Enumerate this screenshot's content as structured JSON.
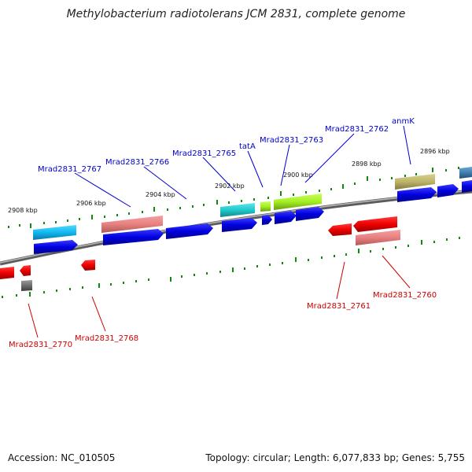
{
  "title": "Methylobacterium radiotolerans JCM 2831, complete genome",
  "footer": {
    "accession": "Accession: NC_010505",
    "summary": "Topology: circular; Length: 6,077,833 bp; Genes: 5,755"
  },
  "colors": {
    "top_label": "#0000cc",
    "bottom_label": "#cc0000",
    "tick": "#118811",
    "backbone": "#888888"
  },
  "ticks": [
    {
      "label": "2908 kbp"
    },
    {
      "label": "2906 kbp"
    },
    {
      "label": "2904 kbp"
    },
    {
      "label": "2902 kbp"
    },
    {
      "label": "2900 kbp"
    },
    {
      "label": "2898 kbp"
    },
    {
      "label": "2896 kbp"
    }
  ],
  "top_labels": [
    {
      "text": "Mrad2831_2767"
    },
    {
      "text": "Mrad2831_2766"
    },
    {
      "text": "Mrad2831_2765"
    },
    {
      "text": "tatA"
    },
    {
      "text": "Mrad2831_2763"
    },
    {
      "text": "Mrad2831_2762"
    },
    {
      "text": "anmK"
    }
  ],
  "bottom_labels": [
    {
      "text": "Mrad2831_2761"
    },
    {
      "text": "Mrad2831_2760"
    },
    {
      "text": "Mrad2831_2770"
    },
    {
      "text": "Mrad2831_2768"
    }
  ]
}
